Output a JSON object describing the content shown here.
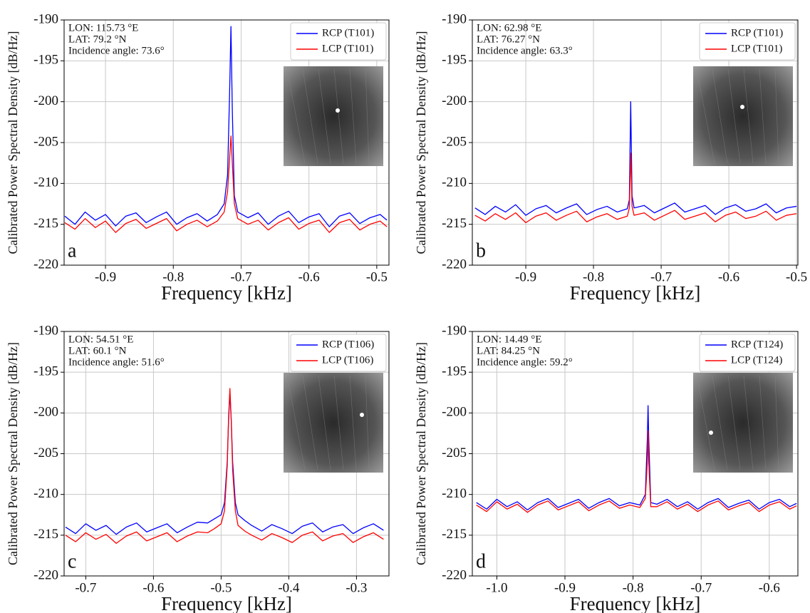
{
  "chart_data": [
    {
      "type": "line",
      "annotations": [
        "LON: 115.73 °E",
        "LAT: 79.2 °N",
        "Incidence angle: 73.6°"
      ],
      "panel_label": "a",
      "xlabel": "Frequency [kHz]",
      "ylabel": "Calibrated Power Spectral Density [dB/Hz]",
      "xlim": [
        -0.961,
        -0.482
      ],
      "ylim": [
        -220,
        -190
      ],
      "xticks": [
        -0.9,
        -0.8,
        -0.7,
        -0.6,
        -0.5
      ],
      "yticks": [
        -220,
        -215,
        -210,
        -205,
        -200,
        -195,
        -190
      ],
      "grid": true,
      "legend": "upper right",
      "x": [
        -0.96,
        -0.945,
        -0.93,
        -0.915,
        -0.9,
        -0.885,
        -0.87,
        -0.855,
        -0.84,
        -0.825,
        -0.81,
        -0.795,
        -0.78,
        -0.765,
        -0.75,
        -0.735,
        -0.725,
        -0.72,
        -0.717,
        -0.715,
        -0.713,
        -0.71,
        -0.705,
        -0.69,
        -0.675,
        -0.66,
        -0.645,
        -0.63,
        -0.615,
        -0.6,
        -0.585,
        -0.57,
        -0.555,
        -0.54,
        -0.525,
        -0.51,
        -0.495,
        -0.485
      ],
      "series": [
        {
          "name": "RCP (T101)",
          "color": "#0000ff",
          "values": [
            -214,
            -215,
            -213.5,
            -214.5,
            -213.8,
            -215.2,
            -214,
            -213.6,
            -214.8,
            -214.1,
            -213.5,
            -215,
            -214.2,
            -213.7,
            -214.6,
            -213.8,
            -212.5,
            -209,
            -199,
            -190.8,
            -201,
            -211.5,
            -213.5,
            -214.2,
            -213.6,
            -215,
            -214,
            -213.4,
            -214.8,
            -214.1,
            -213.7,
            -215.3,
            -214,
            -213.6,
            -214.9,
            -214.2,
            -213.8,
            -214.5
          ]
        },
        {
          "name": "LCP (T101)",
          "color": "#ff0000",
          "values": [
            -214.8,
            -215.6,
            -214.3,
            -215.4,
            -214.6,
            -216,
            -214.9,
            -214.4,
            -215.5,
            -214.9,
            -214.3,
            -215.8,
            -215,
            -214.5,
            -215.3,
            -214.6,
            -213.5,
            -211,
            -207,
            -204.2,
            -207.5,
            -212.5,
            -214.3,
            -215,
            -214.5,
            -215.7,
            -214.8,
            -214.2,
            -215.6,
            -214.9,
            -214.5,
            -216,
            -214.8,
            -214.4,
            -215.7,
            -215,
            -214.6,
            -215.3
          ]
        }
      ]
    },
    {
      "type": "line",
      "annotations": [
        "LON: 62.98 °E",
        "LAT: 76.27 °N",
        "Incidence angle: 63.3°"
      ],
      "panel_label": "b",
      "xlabel": "Frequency [kHz]",
      "ylabel": "Calibrated Power Spectral Density [dB/Hz]",
      "xlim": [
        -0.979,
        -0.498
      ],
      "ylim": [
        -220,
        -190
      ],
      "xticks": [
        -0.9,
        -0.8,
        -0.7,
        -0.6,
        -0.5
      ],
      "yticks": [
        -220,
        -215,
        -210,
        -205,
        -200,
        -195,
        -190
      ],
      "grid": true,
      "legend": "upper right",
      "x": [
        -0.975,
        -0.96,
        -0.945,
        -0.93,
        -0.915,
        -0.9,
        -0.885,
        -0.87,
        -0.855,
        -0.84,
        -0.825,
        -0.81,
        -0.795,
        -0.78,
        -0.765,
        -0.75,
        -0.747,
        -0.745,
        -0.743,
        -0.74,
        -0.725,
        -0.71,
        -0.695,
        -0.68,
        -0.665,
        -0.65,
        -0.635,
        -0.62,
        -0.605,
        -0.59,
        -0.575,
        -0.56,
        -0.545,
        -0.53,
        -0.515,
        -0.5
      ],
      "series": [
        {
          "name": "RCP (T101)",
          "color": "#0000ff",
          "values": [
            -213,
            -213.8,
            -212.8,
            -213.5,
            -212.6,
            -213.9,
            -213.1,
            -212.7,
            -213.6,
            -213,
            -212.5,
            -213.8,
            -213.2,
            -212.8,
            -213.5,
            -213.1,
            -212,
            -200,
            -211.5,
            -213,
            -212.7,
            -213.6,
            -213,
            -212.4,
            -213.5,
            -213.1,
            -212.7,
            -213.8,
            -213,
            -212.6,
            -213.4,
            -213.1,
            -212.5,
            -213.6,
            -213,
            -212.8
          ]
        },
        {
          "name": "LCP (T101)",
          "color": "#ff0000",
          "values": [
            -213.9,
            -214.6,
            -213.7,
            -214.4,
            -213.6,
            -214.8,
            -214,
            -213.6,
            -214.5,
            -213.9,
            -213.4,
            -214.7,
            -214.1,
            -213.7,
            -214.4,
            -214,
            -213,
            -206.3,
            -212.8,
            -213.9,
            -213.6,
            -214.5,
            -213.9,
            -213.3,
            -214.4,
            -214,
            -213.6,
            -214.7,
            -213.9,
            -213.5,
            -214.3,
            -214,
            -213.4,
            -214.5,
            -213.9,
            -213.7
          ]
        }
      ]
    },
    {
      "type": "line",
      "annotations": [
        "LON: 54.51 °E",
        "LAT: 60.1 °N",
        "Incidence angle: 51.6°"
      ],
      "panel_label": "c",
      "xlabel": "Frequency [kHz]",
      "ylabel": "Calibrated Power Spectral Density [dB/Hz]",
      "xlim": [
        -0.732,
        -0.252
      ],
      "ylim": [
        -220,
        -190
      ],
      "xticks": [
        -0.7,
        -0.6,
        -0.5,
        -0.4,
        -0.3
      ],
      "yticks": [
        -220,
        -215,
        -210,
        -205,
        -200,
        -195,
        -190
      ],
      "grid": true,
      "legend": "upper right",
      "x": [
        -0.73,
        -0.715,
        -0.7,
        -0.685,
        -0.67,
        -0.655,
        -0.64,
        -0.625,
        -0.61,
        -0.595,
        -0.58,
        -0.565,
        -0.55,
        -0.535,
        -0.52,
        -0.51,
        -0.5,
        -0.495,
        -0.491,
        -0.489,
        -0.487,
        -0.485,
        -0.483,
        -0.479,
        -0.475,
        -0.465,
        -0.455,
        -0.44,
        -0.425,
        -0.41,
        -0.395,
        -0.38,
        -0.365,
        -0.35,
        -0.335,
        -0.32,
        -0.305,
        -0.29,
        -0.275,
        -0.26
      ],
      "series": [
        {
          "name": "RCP (T106)",
          "color": "#0000ff",
          "values": [
            -214,
            -214.8,
            -213.6,
            -214.4,
            -213.8,
            -214.9,
            -214,
            -213.5,
            -214.6,
            -214.1,
            -213.6,
            -214.7,
            -214,
            -213.4,
            -213.5,
            -213,
            -212.5,
            -211,
            -206,
            -201,
            -197.5,
            -201,
            -206,
            -211,
            -212.5,
            -213.2,
            -213.8,
            -214.5,
            -213.7,
            -214.2,
            -214.8,
            -213.9,
            -213.5,
            -214.6,
            -214,
            -213.7,
            -214.8,
            -214.1,
            -213.6,
            -214.4
          ]
        },
        {
          "name": "LCP (T106)",
          "color": "#ff0000",
          "values": [
            -215,
            -215.8,
            -214.7,
            -215.5,
            -214.9,
            -216,
            -215.1,
            -214.6,
            -215.7,
            -215.2,
            -214.7,
            -215.8,
            -215.1,
            -214.6,
            -214.7,
            -214.2,
            -213.6,
            -212,
            -206.5,
            -200.5,
            -197,
            -201,
            -207,
            -212,
            -213.8,
            -214.5,
            -215,
            -215.6,
            -214.8,
            -215.3,
            -215.9,
            -215,
            -214.6,
            -215.7,
            -215.1,
            -214.8,
            -215.9,
            -215.2,
            -214.7,
            -215.5
          ]
        }
      ]
    },
    {
      "type": "line",
      "annotations": [
        "LON: 14.49 °E",
        "LAT: 84.25 °N",
        "Incidence angle: 59.2°"
      ],
      "panel_label": "d",
      "xlabel": "Frequency [kHz]",
      "ylabel": "Calibrated Power Spectral Density [dB/Hz]",
      "xlim": [
        -1.036,
        -0.558
      ],
      "ylim": [
        -220,
        -190
      ],
      "xticks": [
        {
          "value": -1,
          "label": "-1.0"
        },
        -0.9,
        -0.8,
        -0.7,
        -0.6
      ],
      "yticks": [
        -220,
        -215,
        -210,
        -205,
        -200,
        -195,
        -190
      ],
      "grid": true,
      "legend": "upper right",
      "x": [
        -1.03,
        -1.015,
        -1.0,
        -0.985,
        -0.97,
        -0.955,
        -0.94,
        -0.925,
        -0.91,
        -0.895,
        -0.88,
        -0.865,
        -0.85,
        -0.835,
        -0.82,
        -0.805,
        -0.79,
        -0.782,
        -0.779,
        -0.778,
        -0.777,
        -0.774,
        -0.765,
        -0.75,
        -0.735,
        -0.72,
        -0.705,
        -0.69,
        -0.675,
        -0.66,
        -0.645,
        -0.63,
        -0.615,
        -0.6,
        -0.585,
        -0.57,
        -0.56
      ],
      "series": [
        {
          "name": "RCP (T124)",
          "color": "#0000ff",
          "values": [
            -211,
            -211.8,
            -210.6,
            -211.5,
            -210.9,
            -211.9,
            -211,
            -210.5,
            -211.6,
            -211.1,
            -210.6,
            -211.7,
            -211,
            -210.5,
            -211.4,
            -211,
            -211.3,
            -210,
            -203,
            -199.1,
            -203,
            -211,
            -211.2,
            -210.6,
            -211.5,
            -210.9,
            -211.8,
            -211,
            -210.5,
            -211.6,
            -211.1,
            -210.7,
            -211.8,
            -211,
            -210.6,
            -211.5,
            -211.1
          ]
        },
        {
          "name": "LCP (T124)",
          "color": "#ff0000",
          "values": [
            -211.3,
            -212.1,
            -210.9,
            -211.8,
            -211.2,
            -212.2,
            -211.3,
            -210.8,
            -211.9,
            -211.4,
            -210.9,
            -212,
            -211.3,
            -210.8,
            -211.7,
            -211.3,
            -211.6,
            -210.5,
            -206,
            -202.2,
            -206,
            -211.5,
            -211.5,
            -210.9,
            -211.8,
            -211.2,
            -212.1,
            -211.3,
            -210.8,
            -211.9,
            -211.4,
            -211,
            -212.1,
            -211.3,
            -210.9,
            -211.8,
            -211.4
          ]
        }
      ]
    }
  ]
}
